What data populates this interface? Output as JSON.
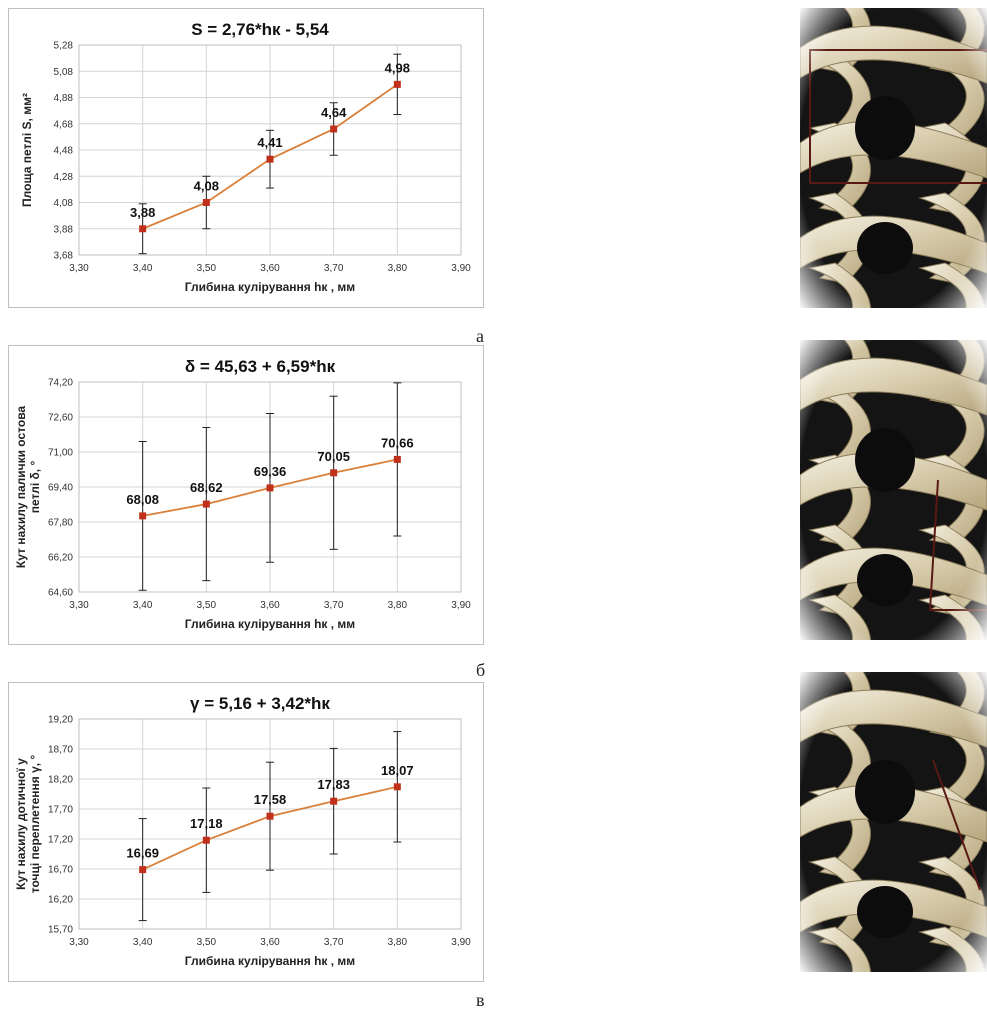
{
  "chart_data": [
    {
      "type": "line",
      "title": "S = 2,76*hк - 5,54",
      "xlabel": "Глибина кулірування hк , мм",
      "ylabel": "Площа петлі S, мм²",
      "xlim": [
        3.3,
        3.9
      ],
      "ylim": [
        3.68,
        5.28
      ],
      "xticks": [
        "3,30",
        "3,40",
        "3,50",
        "3,60",
        "3,70",
        "3,80",
        "3,90"
      ],
      "yticks": [
        "3,68",
        "3,88",
        "4,08",
        "4,28",
        "4,48",
        "4,68",
        "4,88",
        "5,08",
        "5,28"
      ],
      "x": [
        3.4,
        3.5,
        3.6,
        3.7,
        3.8
      ],
      "values": [
        3.88,
        4.08,
        4.41,
        4.64,
        4.98
      ],
      "labels": [
        "3,88",
        "4,08",
        "4,41",
        "4,64",
        "4,98"
      ],
      "errors": [
        0.19,
        0.2,
        0.22,
        0.2,
        0.23
      ],
      "grid": true,
      "point_color": "#c0301b",
      "line_color": "#d9803b",
      "letter": "а"
    },
    {
      "type": "line",
      "title": "δ = 45,63 + 6,59*hк",
      "xlabel": "Глибина кулірування hк , мм",
      "ylabel": "Кут нахилу палички остова петлі δ, °",
      "xlim": [
        3.3,
        3.9
      ],
      "ylim": [
        64.6,
        74.2
      ],
      "xticks": [
        "3,30",
        "3,40",
        "3,50",
        "3,60",
        "3,70",
        "3,80",
        "3,90"
      ],
      "yticks": [
        "64,60",
        "66,20",
        "67,80",
        "69,40",
        "71,00",
        "72,60",
        "74,20"
      ],
      "x": [
        3.4,
        3.5,
        3.6,
        3.7,
        3.8
      ],
      "values": [
        68.08,
        68.62,
        69.36,
        70.05,
        70.66
      ],
      "labels": [
        "68,08",
        "68,62",
        "69,36",
        "70,05",
        "70,66"
      ],
      "errors": [
        3.4,
        3.5,
        3.4,
        3.5,
        3.5
      ],
      "grid": true,
      "point_color": "#c0301b",
      "line_color": "#d9803b",
      "letter": "б"
    },
    {
      "type": "line",
      "title": "γ = 5,16 + 3,42*hк",
      "xlabel": "Глибина кулірування hк , мм",
      "ylabel": "Кут нахилу дотичної у точці переплетення γ, °",
      "xlim": [
        3.3,
        3.9
      ],
      "ylim": [
        15.7,
        19.2
      ],
      "xticks": [
        "3,30",
        "3,40",
        "3,50",
        "3,60",
        "3,70",
        "3,80",
        "3,90"
      ],
      "yticks": [
        "15,70",
        "16,20",
        "16,70",
        "17,20",
        "17,70",
        "18,20",
        "18,70",
        "19,20"
      ],
      "x": [
        3.4,
        3.5,
        3.6,
        3.7,
        3.8
      ],
      "values": [
        16.69,
        17.18,
        17.58,
        17.83,
        18.07
      ],
      "labels": [
        "16,69",
        "17,18",
        "17,58",
        "17,83",
        "18,07"
      ],
      "errors": [
        0.85,
        0.87,
        0.9,
        0.88,
        0.92
      ],
      "grid": true,
      "point_color": "#c0301b",
      "line_color": "#d9803b",
      "letter": "в"
    }
  ],
  "photos": [
    {
      "icon": "knitted-loop-photo",
      "overlay": "rectangle",
      "overlay_color": "#5a1a14"
    },
    {
      "icon": "knitted-loop-photo",
      "overlay": "triangle",
      "overlay_color": "#5a1a14"
    },
    {
      "icon": "knitted-loop-photo",
      "overlay": "tangent-line",
      "overlay_color": "#5a1a14"
    }
  ]
}
